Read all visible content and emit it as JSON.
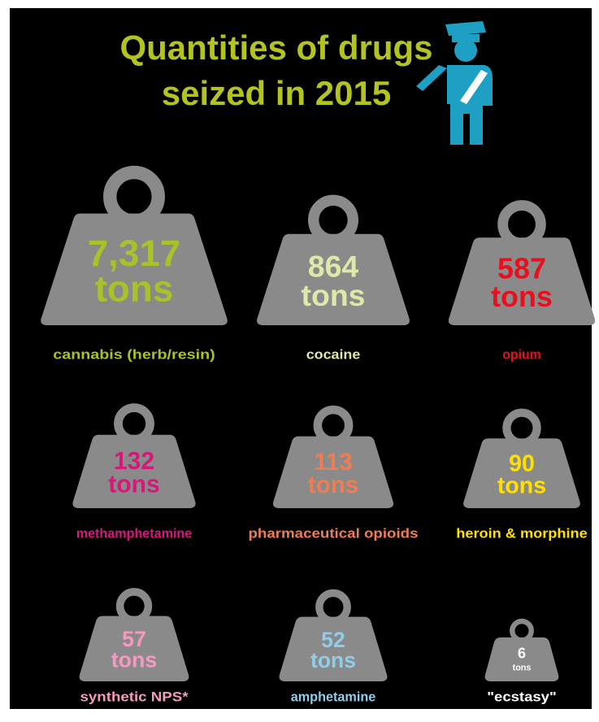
{
  "chart_data": {
    "type": "pictorial",
    "title_lines": [
      "Quantities of drugs",
      "seized in 2015"
    ],
    "unit": "tons",
    "categories": [
      "cannabis (herb/resin)",
      "cocaine",
      "opium",
      "methamphetamine",
      "pharmaceutical opioids",
      "heroin & morphine",
      "synthetic NPS*",
      "amphetamine",
      "\"ecstasy\""
    ],
    "values": [
      7317,
      864,
      587,
      132,
      113,
      90,
      57,
      52,
      6
    ],
    "value_labels": [
      "7,317",
      "864",
      "587",
      "132",
      "113",
      "90",
      "57",
      "52",
      "6"
    ],
    "colors": [
      "#a8c22a",
      "#dfe8a6",
      "#e8101f",
      "#d5197a",
      "#f07d52",
      "#ffe000",
      "#f49ac1",
      "#8fcde9",
      "#ffffff"
    ],
    "title_color": "#b3c322"
  }
}
